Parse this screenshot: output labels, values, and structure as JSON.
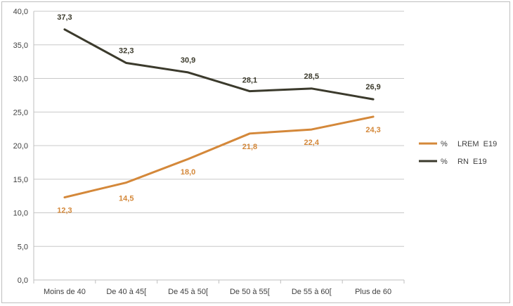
{
  "chart_data": {
    "type": "line",
    "categories": [
      "Moins de 40",
      "De 40 à 45[",
      "De 45 à 50[",
      "De 50 à 55[",
      "De 55 à 60[",
      "Plus de 60"
    ],
    "ylim": [
      0,
      40
    ],
    "ytick_step": 5,
    "ytick_labels": [
      "0,0",
      "5,0",
      "10,0",
      "15,0",
      "20,0",
      "25,0",
      "30,0",
      "35,0",
      "40,0"
    ],
    "grid": true,
    "legend_position": "right",
    "series": [
      {
        "name": "LREM  E19",
        "legend_prefix": "%",
        "color": "#d4883a",
        "values": [
          12.3,
          14.5,
          18.0,
          21.8,
          22.4,
          24.3
        ],
        "labels": [
          "12,3",
          "14,5",
          "18,0",
          "21,8",
          "22,4",
          "24,3"
        ]
      },
      {
        "name": "RN  E19",
        "legend_prefix": "%",
        "color": "#3b3a2c",
        "values": [
          37.3,
          32.3,
          30.9,
          28.1,
          28.5,
          26.9
        ],
        "labels": [
          "37,3",
          "32,3",
          "30,9",
          "28,1",
          "28,5",
          "26,9"
        ]
      }
    ]
  }
}
